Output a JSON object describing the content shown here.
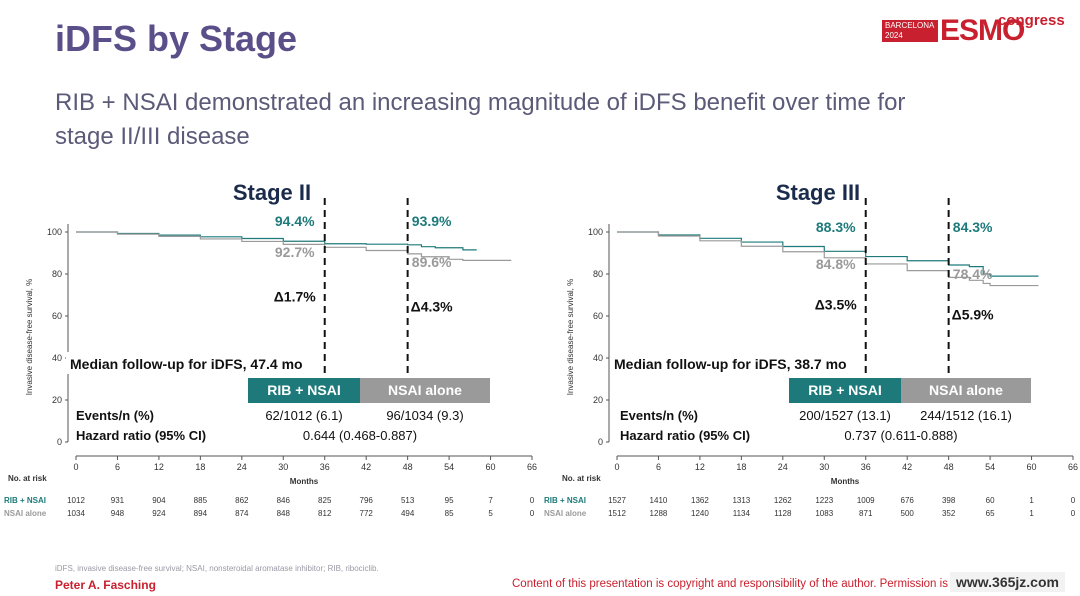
{
  "slide": {
    "title": "iDFS by Stage",
    "subtitle_line1": "RIB + NSAI demonstrated an increasing magnitude of iDFS benefit over time for",
    "subtitle_line2": "stage II/III disease",
    "logo_city": "BARCELONA",
    "logo_year": "2024",
    "logo_brand": "ESMO",
    "logo_suffix": "congress",
    "footnote": "iDFS, invasive disease-free survival; NSAI, nonsteroidal aromatase inhibitor; RIB, ribociclib.",
    "author": "Peter A. Fasching",
    "copyright": "Content of this presentation is copyright and responsibility of the author. Permission is required for re-use.",
    "watermark": "www.365jz.com"
  },
  "colors": {
    "rib": "#1e7a7a",
    "nsai": "#9a9a9a",
    "accent": "#c8202e",
    "title": "#5b4f8a"
  },
  "chart_data": [
    {
      "type": "line",
      "title": "Stage II",
      "ylabel": "Invasive disease-free survival, %",
      "xlabel": "Months",
      "x_ticks": [
        0,
        6,
        12,
        18,
        24,
        30,
        36,
        42,
        48,
        54,
        60,
        66
      ],
      "y_ticks": [
        0,
        20,
        40,
        60,
        80,
        100
      ],
      "xlim": [
        0,
        66
      ],
      "ylim": [
        0,
        100
      ],
      "series": [
        {
          "name": "RIB + NSAI",
          "x": [
            0,
            6,
            12,
            18,
            24,
            30,
            36,
            42,
            48,
            50,
            52,
            56,
            58
          ],
          "y": [
            100,
            99.3,
            98.5,
            97.7,
            96.9,
            95.6,
            94.4,
            94.2,
            93.9,
            93.0,
            92.5,
            91.5,
            91.5
          ]
        },
        {
          "name": "NSAI alone",
          "x": [
            0,
            6,
            12,
            18,
            24,
            30,
            36,
            42,
            48,
            50,
            54,
            56,
            60,
            63
          ],
          "y": [
            100,
            99.0,
            97.9,
            96.7,
            95.5,
            94.1,
            92.7,
            91.2,
            89.6,
            88.2,
            87.0,
            86.5,
            86.5,
            86.5
          ]
        }
      ],
      "landmarks": [
        {
          "month": 36,
          "rib": "94.4%",
          "nsai": "92.7%",
          "delta": "Δ1.7%"
        },
        {
          "month": 48,
          "rib": "93.9%",
          "nsai": "89.6%",
          "delta": "Δ4.3%"
        }
      ],
      "followup": "Median follow-up for iDFS, 47.4 mo",
      "table_header": [
        "RIB + NSAI",
        "NSAI alone"
      ],
      "events_label": "Events/n (%)",
      "events": [
        "62/1012 (6.1)",
        "96/1034 (9.3)"
      ],
      "hr_label": "Hazard ratio (95% CI)",
      "hr": "0.644 (0.468-0.887)",
      "at_risk_title": "No. at risk",
      "at_risk": [
        {
          "name": "RIB + NSAI",
          "values": [
            "1012",
            "931",
            "904",
            "885",
            "862",
            "846",
            "825",
            "796",
            "513",
            "95",
            "7",
            "0"
          ]
        },
        {
          "name": "NSAI alone",
          "values": [
            "1034",
            "948",
            "924",
            "894",
            "874",
            "848",
            "812",
            "772",
            "494",
            "85",
            "5",
            "0"
          ]
        }
      ]
    },
    {
      "type": "line",
      "title": "Stage III",
      "ylabel": "Invasive disease-free survival, %",
      "xlabel": "Months",
      "x_ticks": [
        0,
        6,
        12,
        18,
        24,
        30,
        36,
        42,
        48,
        54,
        60,
        66
      ],
      "y_ticks": [
        0,
        20,
        40,
        60,
        80,
        100
      ],
      "xlim": [
        0,
        66
      ],
      "ylim": [
        0,
        100
      ],
      "series": [
        {
          "name": "RIB + NSAI",
          "x": [
            0,
            6,
            12,
            18,
            24,
            30,
            36,
            42,
            48,
            51,
            53,
            54,
            58,
            61
          ],
          "y": [
            100,
            98.6,
            97.0,
            95.2,
            93.1,
            90.8,
            88.3,
            86.3,
            84.3,
            83.5,
            80.0,
            79.0,
            79.0,
            79.0
          ]
        },
        {
          "name": "NSAI alone",
          "x": [
            0,
            6,
            12,
            18,
            24,
            30,
            36,
            42,
            48,
            51,
            53,
            54,
            58,
            61
          ],
          "y": [
            100,
            98.1,
            95.8,
            93.2,
            90.6,
            87.7,
            84.8,
            81.6,
            78.4,
            77.0,
            75.5,
            74.5,
            74.5,
            74.5
          ]
        }
      ],
      "landmarks": [
        {
          "month": 36,
          "rib": "88.3%",
          "nsai": "84.8%",
          "delta": "Δ3.5%"
        },
        {
          "month": 48,
          "rib": "84.3%",
          "nsai": "78.4%",
          "delta": "Δ5.9%"
        }
      ],
      "followup": "Median follow-up for iDFS, 38.7 mo",
      "table_header": [
        "RIB + NSAI",
        "NSAI alone"
      ],
      "events_label": "Events/n (%)",
      "events": [
        "200/1527 (13.1)",
        "244/1512 (16.1)"
      ],
      "hr_label": "Hazard ratio (95% CI)",
      "hr": "0.737 (0.611-0.888)",
      "at_risk_title": "No. at risk",
      "at_risk": [
        {
          "name": "RIB + NSAI",
          "values": [
            "1527",
            "1410",
            "1362",
            "1313",
            "1262",
            "1223",
            "1009",
            "676",
            "398",
            "60",
            "1",
            "0"
          ]
        },
        {
          "name": "NSAI alone",
          "values": [
            "1512",
            "1288",
            "1240",
            "1134",
            "1128",
            "1083",
            "871",
            "500",
            "352",
            "65",
            "1",
            "0"
          ]
        }
      ]
    }
  ]
}
